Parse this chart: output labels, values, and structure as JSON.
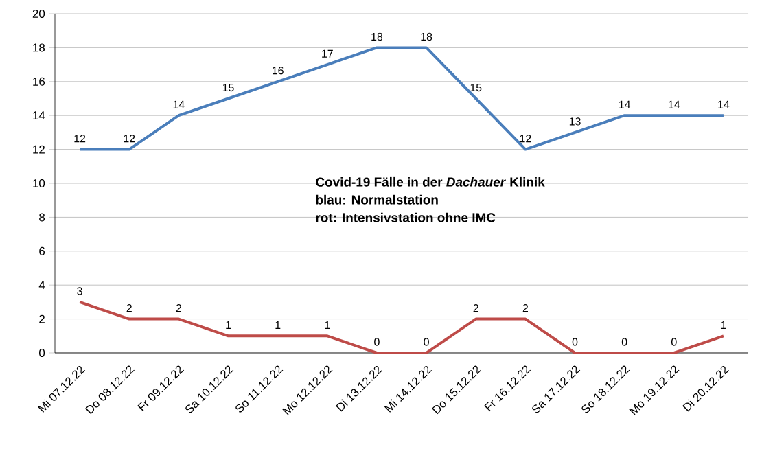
{
  "chart_data": {
    "type": "line",
    "categories": [
      "Mi 07.12.22",
      "Do 08.12.22",
      "Fr 09.12.22",
      "Sa 10.12.22",
      "So 11.12.22",
      "Mo 12.12.22",
      "Di 13.12.22",
      "Mi 14.12.22",
      "Do 15.12.22",
      "Fr 16.12.22",
      "Sa 17.12.22",
      "So 18.12.22",
      "Mo 19.12.22",
      "Di 20.12.22"
    ],
    "series": [
      {
        "color": "#4a7ebb",
        "values": [
          12,
          12,
          14,
          15,
          16,
          17,
          18,
          18,
          15,
          12,
          13,
          14,
          14,
          14
        ]
      },
      {
        "color": "#be4b48",
        "values": [
          3,
          2,
          2,
          1,
          1,
          1,
          0,
          0,
          2,
          2,
          0,
          0,
          0,
          1
        ]
      }
    ],
    "ylim": [
      0,
      20
    ],
    "yticks": [
      0,
      2,
      4,
      6,
      8,
      10,
      12,
      14,
      16,
      18,
      20
    ],
    "grid": "y",
    "data_labels": true,
    "marker": "none",
    "line_style": "solid",
    "annotations": [
      "Covid-19 Fälle in der *Dachauer* Klinik",
      "blau: Normalstation",
      "rot: Intensivstation ohne IMC"
    ]
  }
}
